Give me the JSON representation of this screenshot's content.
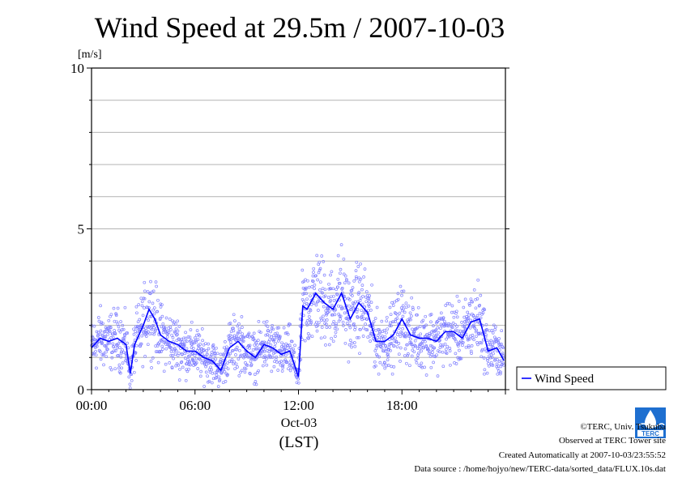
{
  "chart_data": {
    "type": "line",
    "title": "Wind Speed at 29.5m / 2007-10-03",
    "ylabel": "[m/s]",
    "xlabel": "(LST)",
    "date_label": "Oct-03",
    "ylim": [
      0,
      10
    ],
    "xlim": [
      "2007-10-03 00:00",
      "2007-10-04 00:00"
    ],
    "yticks": [
      "0",
      "5",
      "10"
    ],
    "xticks": [
      "00:00",
      "06:00",
      "12:00",
      "18:00"
    ],
    "grid": "horizontal lines every 1 m/s",
    "legend_position": "right",
    "series": [
      {
        "name": "Wind Speed",
        "color": "#0000ff",
        "x": [
          "00:00",
          "00:30",
          "01:00",
          "01:30",
          "02:00",
          "02:15",
          "02:30",
          "03:00",
          "03:20",
          "03:40",
          "04:00",
          "04:30",
          "05:00",
          "05:30",
          "06:00",
          "06:30",
          "07:00",
          "07:30",
          "08:00",
          "08:30",
          "09:00",
          "09:30",
          "10:00",
          "10:30",
          "11:00",
          "11:30",
          "12:00",
          "12:15",
          "12:30",
          "13:00",
          "13:30",
          "14:00",
          "14:30",
          "15:00",
          "15:30",
          "16:00",
          "16:30",
          "17:00",
          "17:30",
          "18:00",
          "18:30",
          "19:00",
          "19:30",
          "20:00",
          "20:30",
          "21:00",
          "21:30",
          "22:00",
          "22:30",
          "23:00",
          "23:30",
          "23:55"
        ],
        "values": [
          1.3,
          1.6,
          1.5,
          1.6,
          1.4,
          0.5,
          1.4,
          2.0,
          2.5,
          2.2,
          1.7,
          1.5,
          1.4,
          1.2,
          1.2,
          1.0,
          0.9,
          0.6,
          1.3,
          1.5,
          1.2,
          1.0,
          1.4,
          1.3,
          1.1,
          1.2,
          0.4,
          2.6,
          2.5,
          3.0,
          2.7,
          2.5,
          3.0,
          2.2,
          2.7,
          2.4,
          1.5,
          1.5,
          1.7,
          2.2,
          1.7,
          1.6,
          1.6,
          1.5,
          1.8,
          1.8,
          1.6,
          2.1,
          2.2,
          1.2,
          1.3,
          0.9
        ]
      }
    ],
    "scatter_color": "#8080ff"
  },
  "footer": {
    "credit": "©TERC, Univ. Tsukuba",
    "observed": "Observed at TERC Tower site",
    "created": "Created Automatically at 2007-10-03/23:55:52",
    "source": "Data source : /home/hojyo/new/TERC-data/sorted_data/FLUX.10s.dat"
  },
  "logo": {
    "text": "TERC",
    "color": "#1e6fd0",
    "icon": "terc-logo"
  }
}
